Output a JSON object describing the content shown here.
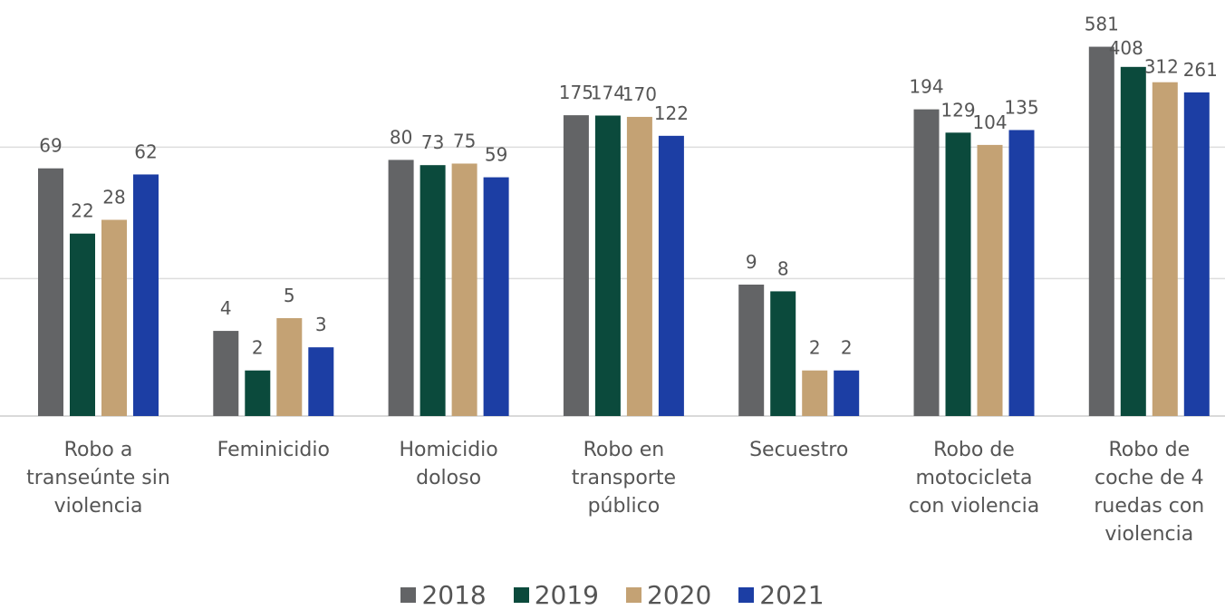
{
  "chart_data": {
    "type": "bar",
    "title": "",
    "xlabel": "",
    "ylabel": "",
    "log_scale": true,
    "grid": true,
    "legend_position": "bottom-center",
    "categories": [
      "Robo a transeúnte sin violencia",
      "Feminicidio",
      "Homicidio doloso",
      "Robo en transporte público",
      "Secuestro",
      "Robo de motocicleta con violencia",
      "Robo de coche de 4 ruedas con violencia"
    ],
    "category_lines": [
      [
        "Robo a",
        "transeúnte sin",
        "violencia"
      ],
      [
        "Feminicidio"
      ],
      [
        "Homicidio",
        "doloso"
      ],
      [
        "Robo en",
        "transporte",
        "público"
      ],
      [
        "Secuestro"
      ],
      [
        "Robo de",
        "motocicleta",
        "con violencia"
      ],
      [
        "Robo de",
        "coche de 4",
        "ruedas con",
        "violencia"
      ]
    ],
    "series": [
      {
        "name": "2018",
        "color": "#636466",
        "values": [
          69,
          4,
          80,
          175,
          9,
          194,
          581
        ]
      },
      {
        "name": "2019",
        "color": "#0b4a3c",
        "values": [
          22,
          2,
          73,
          174,
          8,
          129,
          408
        ]
      },
      {
        "name": "2020",
        "color": "#c4a274",
        "values": [
          28,
          5,
          75,
          170,
          2,
          104,
          312
        ]
      },
      {
        "name": "2021",
        "color": "#1c3ea4",
        "values": [
          62,
          3,
          59,
          122,
          2,
          135,
          261
        ]
      }
    ]
  }
}
